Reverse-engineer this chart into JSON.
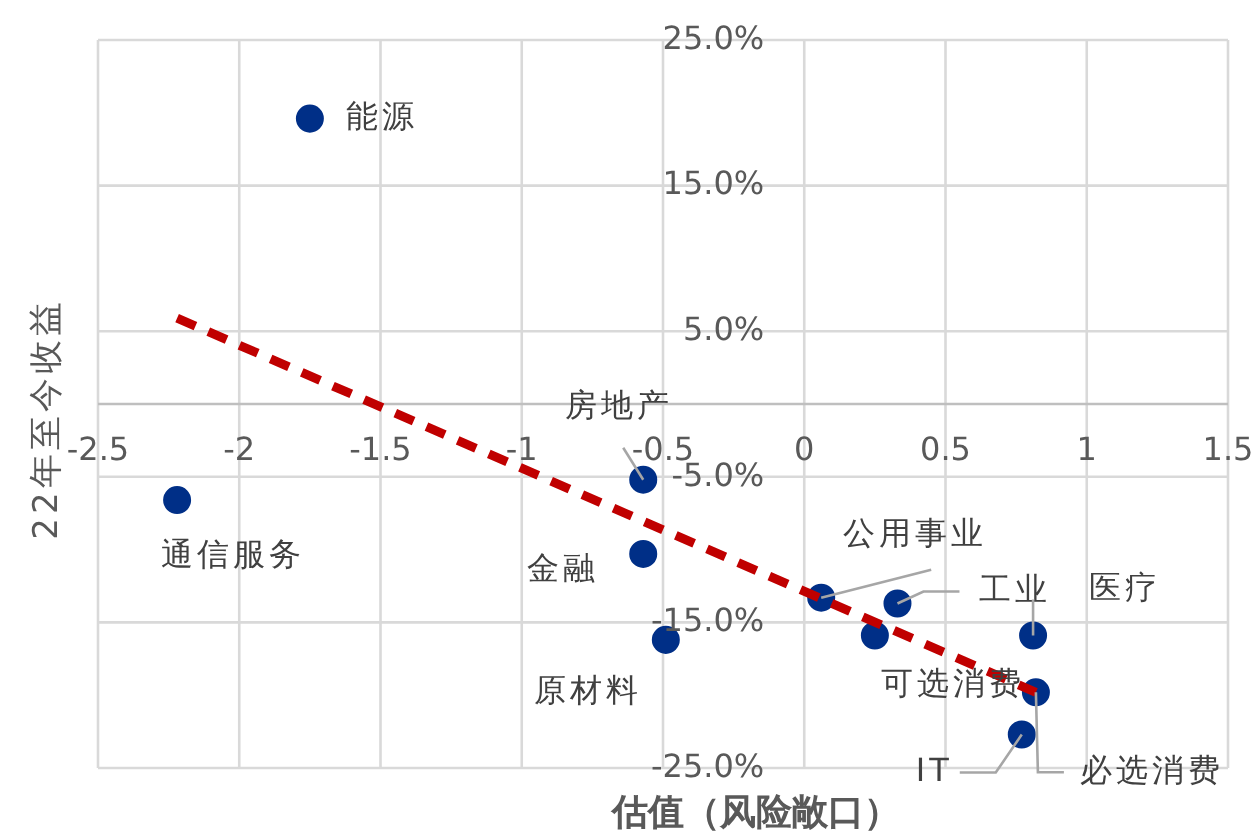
{
  "chart_data": {
    "type": "scatter",
    "xlabel": "估值（风险敞口）",
    "ylabel": "22年至今收益",
    "x": [
      -1.75,
      -2.22,
      -0.57,
      -0.57,
      -0.49,
      0.06,
      0.33,
      0.25,
      0.81,
      0.82,
      0.77
    ],
    "series": [
      {
        "color": "#002f87",
        "marker": "circle",
        "values": [
          19.6,
          -6.6,
          -5.2,
          -10.3,
          -16.2,
          -13.3,
          -13.7,
          -15.9,
          -15.9,
          -19.8,
          -22.7
        ]
      },
      {
        "type": "line",
        "color": "#c00000",
        "line_style": "dashed",
        "marker": "none",
        "x": [
          -2.22,
          0.82
        ],
        "values": [
          5.9,
          -19.8
        ]
      }
    ],
    "annotations": [
      {
        "text": "能源",
        "x": -1.75,
        "y": 19.6
      },
      {
        "text": "通信服务",
        "x": -2.22,
        "y": -6.6
      },
      {
        "text": "房地产",
        "x": -0.57,
        "y": -5.2
      },
      {
        "text": "金融",
        "x": -0.57,
        "y": -10.3
      },
      {
        "text": "原材料",
        "x": -0.49,
        "y": -16.2
      },
      {
        "text": "公用事业",
        "x": 0.06,
        "y": -13.3
      },
      {
        "text": "工业",
        "x": 0.33,
        "y": -13.7
      },
      {
        "text": "可选消费",
        "x": 0.25,
        "y": -15.9
      },
      {
        "text": "医疗",
        "x": 0.81,
        "y": -15.9
      },
      {
        "text": "必选消费",
        "x": 0.82,
        "y": -19.8
      },
      {
        "text": "IT",
        "x": 0.77,
        "y": -22.7
      }
    ],
    "xlim": [
      -2.5,
      1.5
    ],
    "xticks": [
      -2.5,
      -2,
      -1.5,
      -1,
      -0.5,
      0,
      0.5,
      1,
      1.5
    ],
    "ylim": [
      -25,
      25
    ],
    "yticks": [
      {
        "value": 25,
        "label": "25.0%"
      },
      {
        "value": 15,
        "label": "15.0%"
      },
      {
        "value": 5,
        "label": "5.0%"
      },
      {
        "value": -5,
        "label": "-5.0%"
      },
      {
        "value": -15,
        "label": "-15.0%"
      },
      {
        "value": -25,
        "label": "-25.0%"
      }
    ],
    "grid": true,
    "legend": false
  }
}
